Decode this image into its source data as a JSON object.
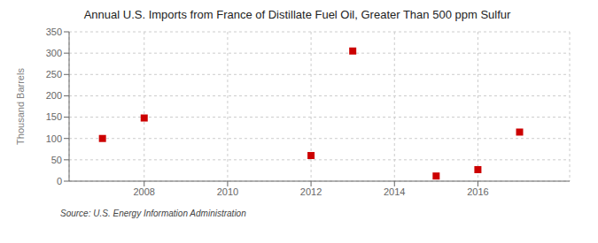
{
  "chart_data": {
    "type": "scatter",
    "title": "Annual U.S. Imports from France of Distillate Fuel Oil, Greater Than 500 ppm Sulfur",
    "ylabel": "Thousand Barrels",
    "annotation": "Source: U.S. Energy Information Administration",
    "x": [
      2007,
      2008,
      2012,
      2013,
      2015,
      2016,
      2017
    ],
    "values": [
      100,
      148,
      60,
      305,
      12,
      27,
      115
    ],
    "color": "#cc0000",
    "marker": "square",
    "xlim": [
      2006.2,
      2018.2
    ],
    "ylim": [
      0,
      350
    ],
    "xticks": [
      2008,
      2010,
      2012,
      2014,
      2016
    ],
    "yticks": [
      0,
      50,
      100,
      150,
      200,
      250,
      300,
      350
    ],
    "grid": true
  }
}
